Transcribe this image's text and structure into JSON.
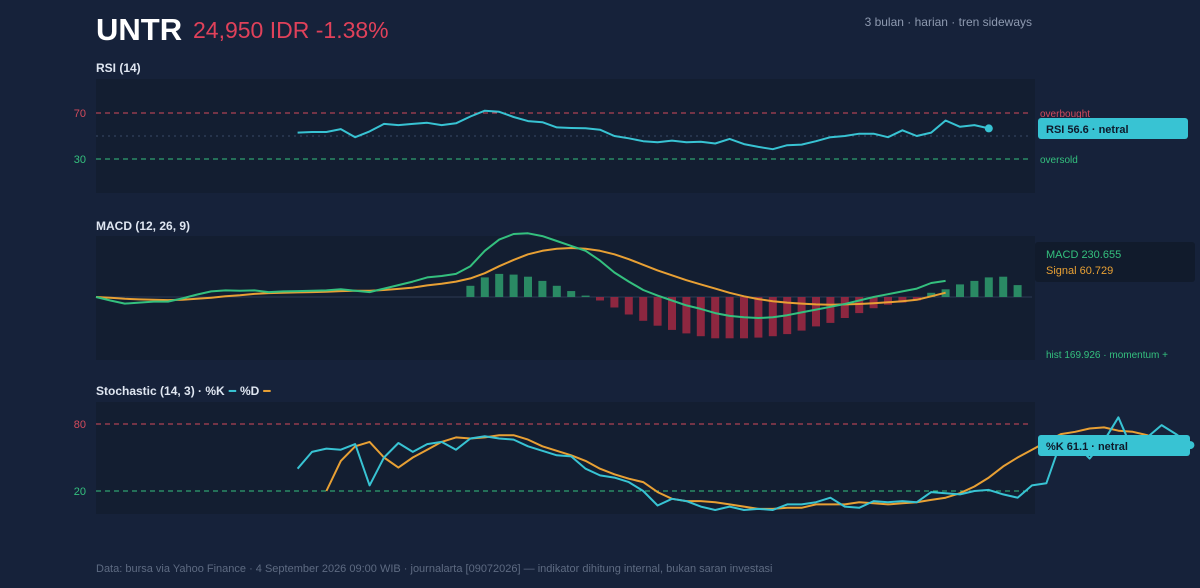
{
  "header": {
    "ticker": "UNTR",
    "price_line": "24,950 IDR -1.38%",
    "meta": "3 bulan · harian · tren sideways"
  },
  "footer": "Data: bursa via Yahoo Finance · 4 September 2026 09:00 WIB · journalarta [09072026] — indikator dihitung internal, bukan saran investasi",
  "colors": {
    "background": "#16223a",
    "panel": "#131e31",
    "rsi_line": "#38c3d3",
    "macd_line": "#34c07e",
    "signal_line": "#e8a034",
    "hist_pos": "#2a8a64",
    "hist_neg": "#8e2740",
    "overbought": "#d34b5c",
    "oversold": "#34c07e",
    "stoch_k": "#38c3d3",
    "stoch_d": "#e8a034",
    "negative_price": "#e0415a",
    "tag_bg": "#38c3d3"
  },
  "chart_data": [
    {
      "type": "line",
      "title": "RSI (14)",
      "ylim": [
        0,
        100
      ],
      "yticks": [
        70,
        30
      ],
      "ref_lines": [
        {
          "value": 70,
          "label": "overbought",
          "color": "#d34b5c"
        },
        {
          "value": 30,
          "label": "oversold",
          "color": "#34c07e"
        },
        {
          "value": 50,
          "label": "",
          "color": "#3a4a66"
        }
      ],
      "series": [
        {
          "start_index": 14,
          "values": [
            53,
            53.5,
            53.5,
            56,
            49,
            54,
            60.5,
            59.5,
            60.5,
            61.5,
            59.5,
            61,
            67,
            72,
            71,
            66.5,
            63,
            62,
            57.5,
            57,
            56.7,
            55.5,
            50,
            48,
            45.5,
            44.5,
            46,
            44.5,
            45,
            43.5,
            47.5,
            43,
            40.5,
            38.5,
            42,
            42.5,
            45.5,
            49,
            50,
            52,
            52,
            49,
            55,
            50,
            53,
            63.5,
            58,
            59.5,
            56.6
          ]
        }
      ],
      "last_label": "RSI 56.6 · netral"
    },
    {
      "type": "line",
      "title": "MACD (12, 26, 9)",
      "ylim": [
        -1000,
        1000
      ],
      "series": [
        {
          "name": "MACD",
          "values": [
            0,
            -50,
            -95,
            -80,
            -65,
            -65,
            -20,
            35,
            80,
            95,
            90,
            95,
            70,
            80,
            85,
            90,
            95,
            110,
            90,
            70,
            120,
            170,
            220,
            280,
            300,
            330,
            440,
            660,
            820,
            900,
            910,
            870,
            800,
            730,
            660,
            520,
            350,
            220,
            100,
            20,
            -50,
            -120,
            -170,
            -230,
            -270,
            -290,
            -300,
            -290,
            -260,
            -220,
            -180,
            -140,
            -100,
            -50,
            0,
            40,
            80,
            120,
            200,
            230.655
          ]
        },
        {
          "name": "Signal",
          "values": [
            0,
            -10,
            -25,
            -35,
            -40,
            -45,
            -40,
            -25,
            -10,
            10,
            25,
            45,
            55,
            60,
            65,
            70,
            75,
            85,
            90,
            90,
            100,
            115,
            135,
            165,
            190,
            220,
            265,
            340,
            440,
            530,
            610,
            660,
            690,
            700,
            690,
            660,
            610,
            540,
            460,
            380,
            310,
            240,
            180,
            120,
            60,
            10,
            -30,
            -60,
            -80,
            -95,
            -105,
            -110,
            -105,
            -100,
            -90,
            -75,
            -60,
            -40,
            10,
            60.729
          ]
        }
      ],
      "histogram": {
        "start_index": 26,
        "values": [
          160,
          280,
          330,
          320,
          290,
          230,
          160,
          85,
          20,
          -50,
          -150,
          -250,
          -340,
          -410,
          -470,
          -520,
          -560,
          -590,
          -590,
          -590,
          -580,
          -560,
          -530,
          -480,
          -420,
          -370,
          -300,
          -230,
          -160,
          -110,
          -80,
          -50,
          60,
          110,
          180,
          230,
          280,
          290,
          169.926
        ]
      },
      "legend": [
        "MACD 230.655",
        "Signal 60.729"
      ],
      "note": "hist 169.926 · momentum +"
    },
    {
      "type": "line",
      "title": "Stochastic (14, 3) · %K",
      "legend_d": "%D",
      "ylim": [
        0,
        100
      ],
      "yticks": [
        80,
        20
      ],
      "ref_lines": [
        {
          "value": 80,
          "label": "",
          "color": "#d34b5c"
        },
        {
          "value": 20,
          "label": "",
          "color": "#34c07e"
        }
      ],
      "series": [
        {
          "name": "%K",
          "start_index": 14,
          "values": [
            40,
            55,
            58,
            57,
            62,
            25,
            50,
            63,
            55,
            62,
            64,
            57,
            67,
            69,
            67,
            66,
            60,
            56,
            52,
            51,
            40,
            34,
            32,
            28,
            20,
            7,
            13,
            11,
            6,
            3,
            6,
            3,
            4,
            3,
            8,
            8,
            10,
            14,
            6,
            5,
            11,
            10,
            11,
            10,
            19,
            18,
            17,
            20,
            21,
            17,
            14,
            25,
            27,
            64,
            62,
            49,
            65,
            86,
            56,
            68,
            79,
            71,
            61.1
          ]
        },
        {
          "name": "%D",
          "start_index": 16,
          "values": [
            20,
            47,
            60,
            64,
            50,
            41,
            50,
            57,
            64,
            68,
            67,
            68,
            70,
            70,
            66,
            60,
            56,
            52,
            47,
            40,
            35,
            31,
            28,
            19,
            13,
            11,
            11,
            10,
            8,
            6,
            4,
            4,
            5,
            5,
            8,
            8,
            8,
            10,
            9,
            8,
            9,
            10,
            12,
            14,
            18,
            24,
            32,
            42,
            50,
            57,
            64,
            71,
            73,
            76,
            77,
            74,
            73,
            70,
            64
          ]
        }
      ],
      "last_label": "%K 61.1 · netral"
    }
  ]
}
